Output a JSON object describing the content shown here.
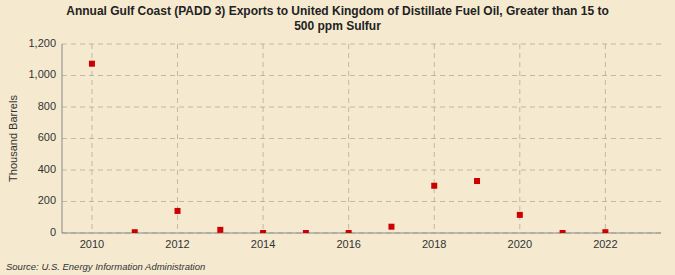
{
  "chart_data": {
    "type": "scatter",
    "title": "Annual Gulf Coast (PADD 3) Exports to United Kingdom of Distillate Fuel Oil, Greater than 15 to\n500 ppm Sulfur",
    "y_label": "Thousand Barrels",
    "annotations": [
      "Source: U.S. Energy Information Administration"
    ],
    "x": [
      2010,
      2011,
      2012,
      2013,
      2014,
      2015,
      2016,
      2017,
      2018,
      2019,
      2020,
      2021,
      2022
    ],
    "values": [
      1075,
      5,
      140,
      20,
      0,
      0,
      0,
      40,
      300,
      330,
      115,
      0,
      5
    ],
    "color": "#cc0000",
    "marker": "square",
    "xlim": [
      2009.3,
      2023.3
    ],
    "ylim": [
      0,
      1200
    ],
    "xticks": [
      2010,
      2012,
      2014,
      2016,
      2018,
      2020,
      2022
    ],
    "yticks": [
      0,
      200,
      400,
      600,
      800,
      {
        "value": 1000,
        "label": "1,000"
      },
      {
        "value": 1200,
        "label": "1,200"
      }
    ],
    "grid": true
  }
}
